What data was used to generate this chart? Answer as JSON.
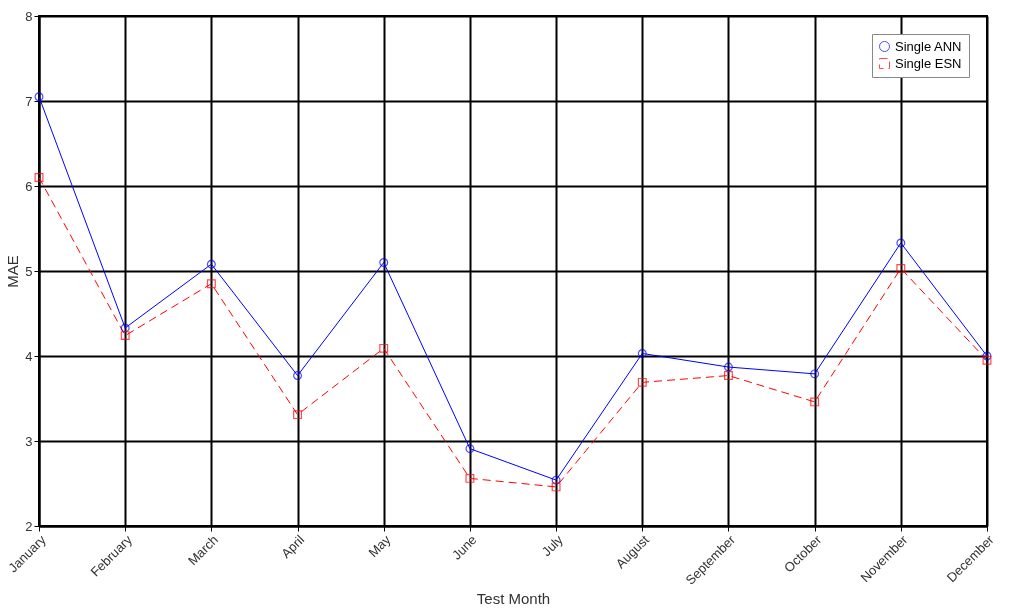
{
  "chart_data": {
    "type": "line",
    "xlabel": "Test Month",
    "ylabel": "MAE",
    "categories": [
      "January",
      "February",
      "March",
      "April",
      "May",
      "June",
      "July",
      "August",
      "September",
      "October",
      "November",
      "December"
    ],
    "series": [
      {
        "name": "Single ANN",
        "color": "#0000ff",
        "marker": "circle",
        "line_style": "solid",
        "values": [
          7.05,
          4.33,
          5.08,
          3.77,
          5.1,
          2.91,
          2.54,
          4.03,
          3.87,
          3.79,
          5.33,
          4.0
        ]
      },
      {
        "name": "Single ESN",
        "color": "#ff0000",
        "marker": "square",
        "line_style": "dashed",
        "values": [
          6.1,
          4.24,
          4.85,
          3.31,
          4.09,
          2.56,
          2.46,
          3.69,
          3.77,
          3.46,
          5.03,
          3.95
        ]
      }
    ],
    "ylim": [
      2,
      8
    ],
    "yticks": [
      2,
      3,
      4,
      5,
      6,
      7,
      8
    ],
    "grid": true,
    "legend": "top right"
  }
}
